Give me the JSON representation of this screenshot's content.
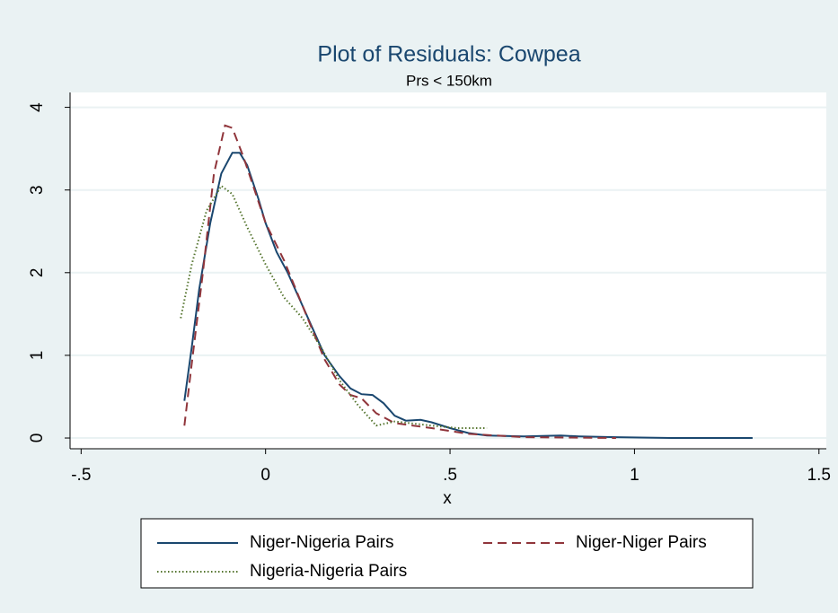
{
  "chart_data": {
    "type": "line",
    "title": "Plot of Residuals: Cowpea",
    "subtitle": "Prs < 150km",
    "x_label": "x",
    "xlim": [
      -0.53,
      1.52
    ],
    "ylim": [
      -0.13,
      4.18
    ],
    "xticks": [
      {
        "value": -0.5,
        "label": "-.5"
      },
      0,
      {
        "value": 0.5,
        "label": ".5"
      },
      1,
      {
        "value": 1.5,
        "label": "1.5"
      }
    ],
    "yticks": [
      0,
      1,
      2,
      3,
      4
    ],
    "grid": true,
    "legend": "bottom",
    "series": [
      {
        "name": "Niger-Nigeria Pairs",
        "color": "#1a476f",
        "style": "solid",
        "x": [
          -0.22,
          -0.2,
          -0.18,
          -0.15,
          -0.12,
          -0.09,
          -0.07,
          -0.05,
          -0.02,
          0,
          0.03,
          0.06,
          0.1,
          0.13,
          0.16,
          0.2,
          0.23,
          0.26,
          0.29,
          0.32,
          0.35,
          0.38,
          0.42,
          0.45,
          0.5,
          0.55,
          0.6,
          0.7,
          0.8,
          0.85,
          0.95,
          1.1,
          1.32
        ],
        "values": [
          0.45,
          1.1,
          1.8,
          2.6,
          3.2,
          3.45,
          3.45,
          3.3,
          2.9,
          2.6,
          2.25,
          2.0,
          1.6,
          1.3,
          1.0,
          0.75,
          0.6,
          0.53,
          0.52,
          0.42,
          0.27,
          0.21,
          0.22,
          0.19,
          0.12,
          0.06,
          0.03,
          0.02,
          0.03,
          0.02,
          0.01,
          0.0,
          0.0
        ]
      },
      {
        "name": "Niger-Niger Pairs",
        "color": "#90353b",
        "style": "dashed",
        "x": [
          -0.22,
          -0.2,
          -0.17,
          -0.14,
          -0.11,
          -0.09,
          -0.06,
          -0.03,
          0,
          0.05,
          0.1,
          0.16,
          0.2,
          0.23,
          0.26,
          0.3,
          0.35,
          0.45,
          0.55,
          0.7,
          0.95
        ],
        "values": [
          0.15,
          0.9,
          2.0,
          3.2,
          3.78,
          3.75,
          3.4,
          3.0,
          2.6,
          2.15,
          1.6,
          0.95,
          0.65,
          0.52,
          0.48,
          0.3,
          0.18,
          0.12,
          0.05,
          0.01,
          0.0
        ]
      },
      {
        "name": "Nigeria-Nigeria Pairs",
        "color": "#55752f",
        "style": "dotted",
        "x": [
          -0.23,
          -0.2,
          -0.16,
          -0.12,
          -0.09,
          -0.05,
          0,
          0.05,
          0.1,
          0.15,
          0.2,
          0.25,
          0.3,
          0.35,
          0.45,
          0.52,
          0.6
        ],
        "values": [
          1.45,
          2.1,
          2.75,
          3.05,
          2.95,
          2.55,
          2.1,
          1.7,
          1.45,
          1.1,
          0.7,
          0.4,
          0.15,
          0.2,
          0.15,
          0.12,
          0.12
        ]
      }
    ]
  }
}
